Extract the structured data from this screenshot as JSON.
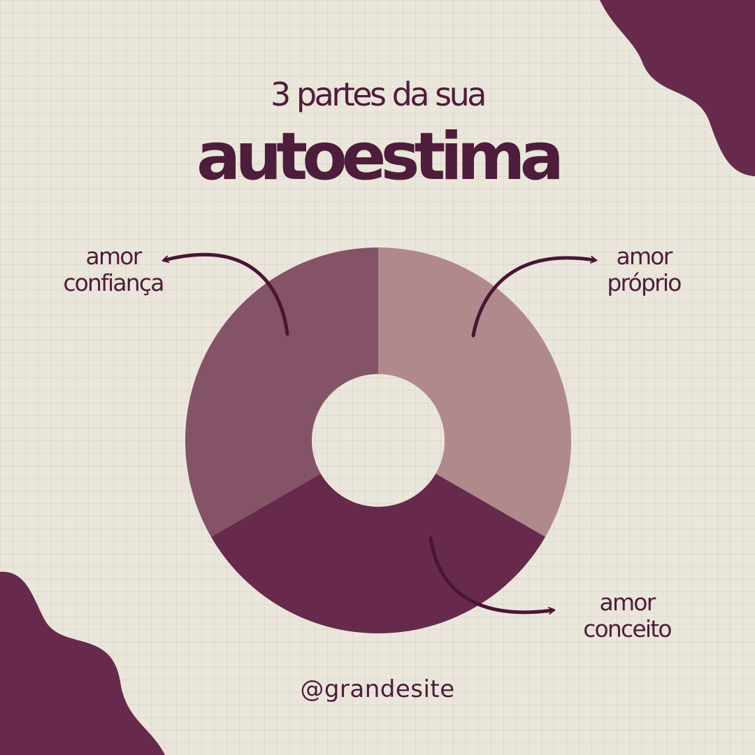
{
  "header": {
    "subtitle": "3 partes da sua",
    "title": "autoestima"
  },
  "footer": {
    "handle": "@grandesite"
  },
  "colors": {
    "background": "#ebe6db",
    "text": "#4e1d3b",
    "accent": "#672a4c",
    "slice_proprio": "#b0898c",
    "slice_conceito": "#672a4c",
    "slice_confianca": "#845368",
    "arrow": "#4a1535"
  },
  "chart_data": {
    "type": "pie",
    "donut": true,
    "title": "3 partes da sua autoestima",
    "categories": [
      "amor próprio",
      "amor conceito",
      "amor confiança"
    ],
    "values": [
      33.33,
      33.33,
      33.33
    ],
    "slices": [
      {
        "line1": "amor",
        "line2": "próprio",
        "value": 33.33,
        "color": "#b0898c"
      },
      {
        "line1": "amor",
        "line2": "conceito",
        "value": 33.33,
        "color": "#672a4c"
      },
      {
        "line1": "amor",
        "line2": "confiança",
        "value": 33.33,
        "color": "#845368"
      }
    ],
    "legend": "none"
  }
}
